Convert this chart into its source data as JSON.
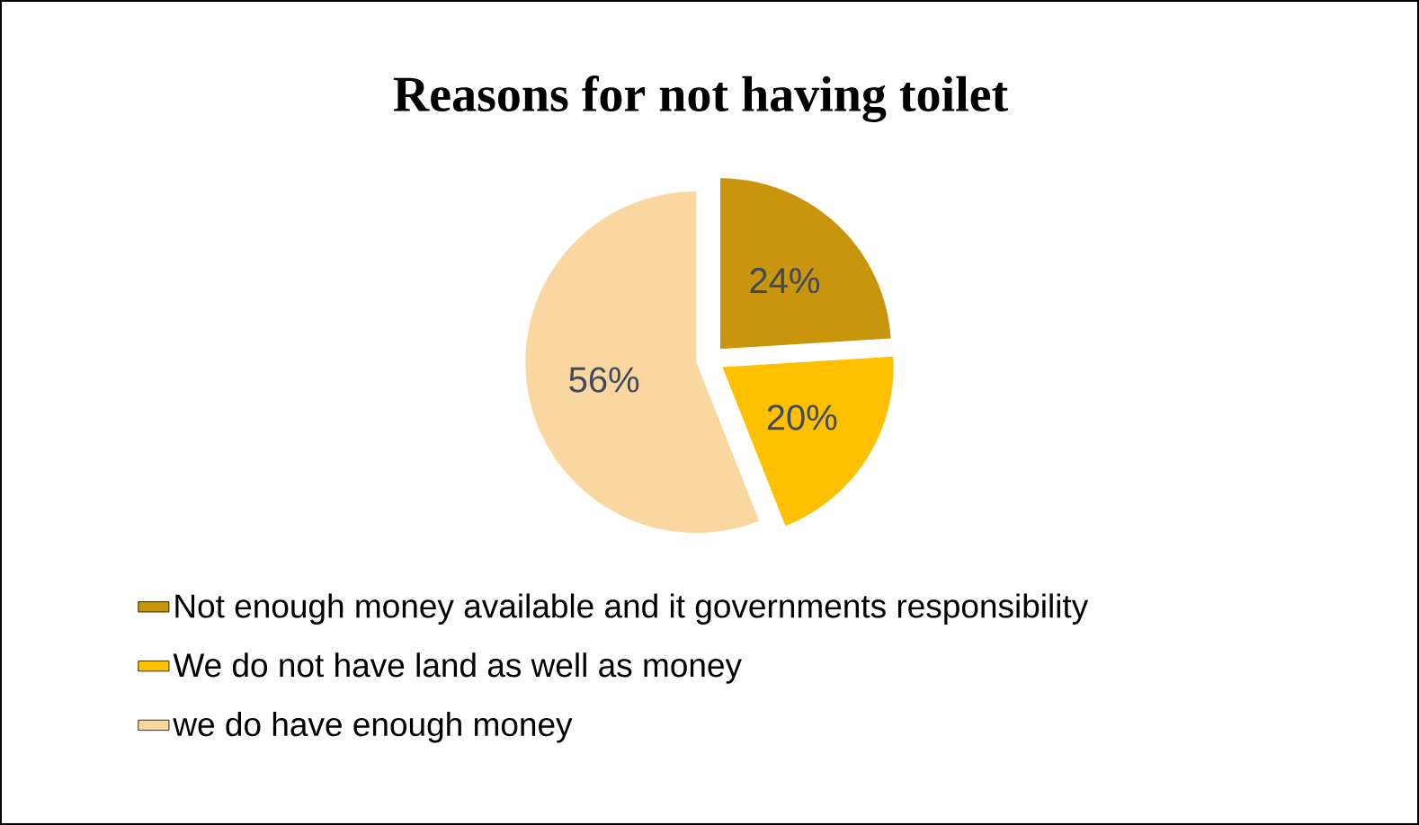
{
  "chart_data": {
    "type": "pie",
    "title": "Reasons for not having toilet",
    "categories": [
      "Not enough money available and it governments responsibility",
      "We do not have land as well as money",
      "we do have enough money"
    ],
    "values": [
      24,
      20,
      56
    ],
    "value_labels": [
      "24%",
      "20%",
      "56%"
    ],
    "colors": [
      "#c9950c",
      "#ffc000",
      "#fad7a0"
    ],
    "legend": "bottom"
  }
}
